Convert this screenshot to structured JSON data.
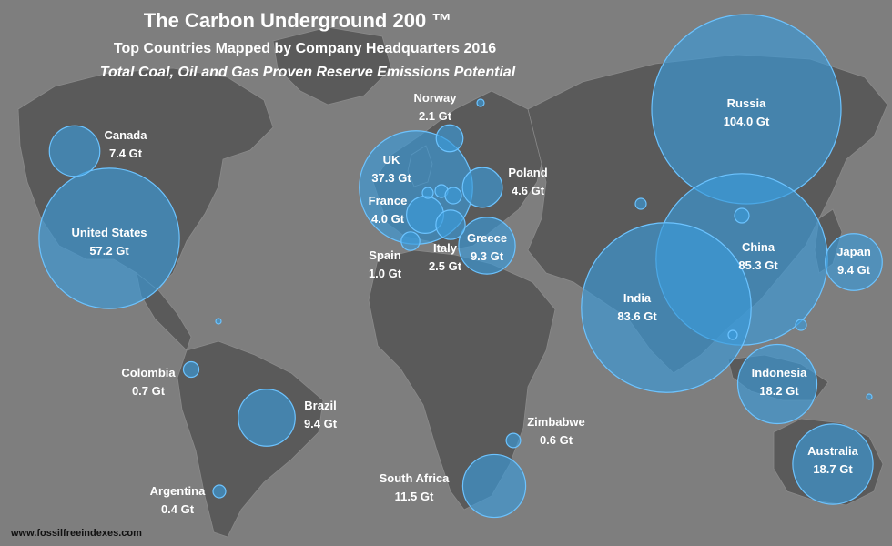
{
  "title": "The Carbon Underground 200 ™",
  "subtitle": "Top Countries Mapped by Company Headquarters 2016",
  "subtitle2": "Total Coal, Oil and Gas Proven Reserve Emissions Potential",
  "source": "www.fossilfreeindexes.com",
  "colors": {
    "ocean": "#7e7e7e",
    "land": "#5a5a5a",
    "bubble": "#3a9ad9"
  },
  "countries": [
    {
      "name": "Russia",
      "value_label": "104.0 Gt",
      "value_gt": 104.0
    },
    {
      "name": "China",
      "value_label": "85.3 Gt",
      "value_gt": 85.3
    },
    {
      "name": "India",
      "value_label": "83.6 Gt",
      "value_gt": 83.6
    },
    {
      "name": "United States",
      "value_label": "57.2 Gt",
      "value_gt": 57.2
    },
    {
      "name": "UK",
      "value_label": "37.3 Gt",
      "value_gt": 37.3
    },
    {
      "name": "Australia",
      "value_label": "18.7 Gt",
      "value_gt": 18.7
    },
    {
      "name": "Indonesia",
      "value_label": "18.2 Gt",
      "value_gt": 18.2
    },
    {
      "name": "South Africa",
      "value_label": "11.5 Gt",
      "value_gt": 11.5
    },
    {
      "name": "Japan",
      "value_label": "9.4 Gt",
      "value_gt": 9.4
    },
    {
      "name": "Brazil",
      "value_label": "9.4 Gt",
      "value_gt": 9.4
    },
    {
      "name": "Greece",
      "value_label": "9.3 Gt",
      "value_gt": 9.3
    },
    {
      "name": "Canada",
      "value_label": "7.4 Gt",
      "value_gt": 7.4
    },
    {
      "name": "Poland",
      "value_label": "4.6 Gt",
      "value_gt": 4.6
    },
    {
      "name": "France",
      "value_label": "4.0 Gt",
      "value_gt": 4.0
    },
    {
      "name": "Italy",
      "value_label": "2.5 Gt",
      "value_gt": 2.5
    },
    {
      "name": "Norway",
      "value_label": "2.1 Gt",
      "value_gt": 2.1
    },
    {
      "name": "Spain",
      "value_label": "1.0 Gt",
      "value_gt": 1.0
    },
    {
      "name": "Colombia",
      "value_label": "0.7 Gt",
      "value_gt": 0.7
    },
    {
      "name": "Zimbabwe",
      "value_label": "0.6 Gt",
      "value_gt": 0.6
    },
    {
      "name": "Argentina",
      "value_label": "0.4 Gt",
      "value_gt": 0.4
    }
  ]
}
